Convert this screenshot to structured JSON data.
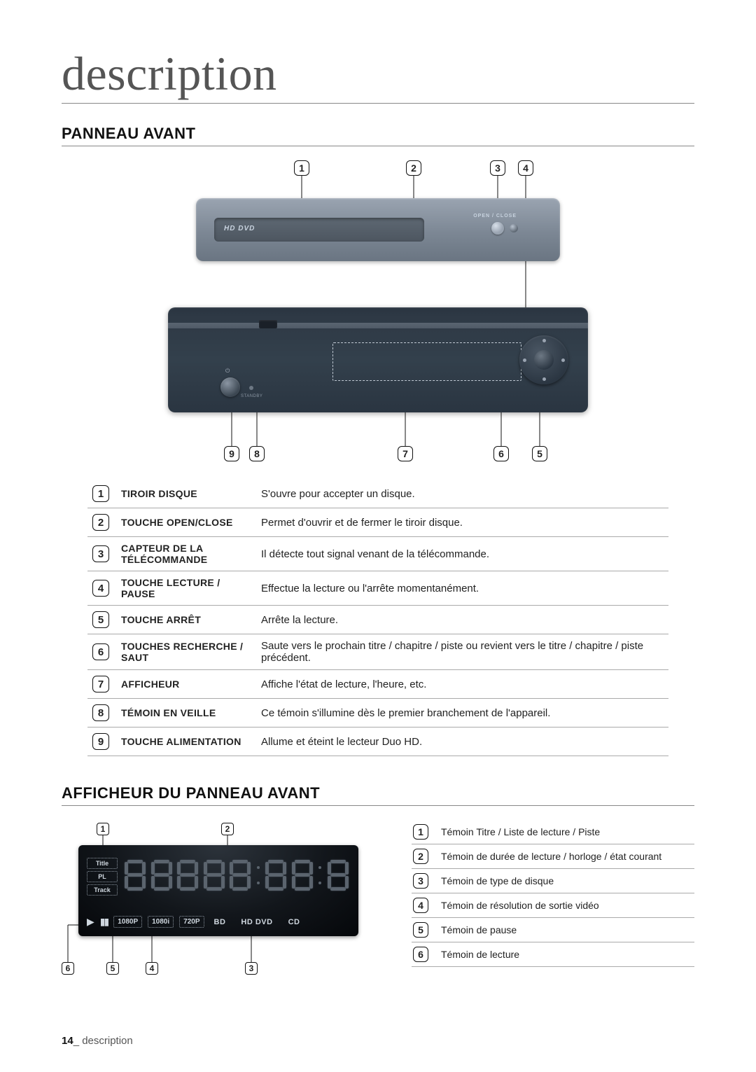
{
  "page_title": "description",
  "section1_title": "PANNEAU AVANT",
  "section2_title": "AFFICHEUR DU PANNEAU AVANT",
  "footer_page": "14",
  "footer_text": "_ description",
  "top_labels": [
    "1",
    "2",
    "3",
    "4"
  ],
  "bottom_labels": [
    "9",
    "8",
    "7",
    "6",
    "5"
  ],
  "device_top": {
    "tray_brand": "HD DVD",
    "open_close": "OPEN / CLOSE"
  },
  "device_bot": {
    "power_sym": "⏻",
    "standby": "STANDBY"
  },
  "parts": [
    {
      "n": "1",
      "label": "TIROIR DISQUE",
      "desc": "S'ouvre pour accepter un disque."
    },
    {
      "n": "2",
      "label": "TOUCHE OPEN/CLOSE",
      "desc": "Permet d'ouvrir et de fermer le tiroir disque."
    },
    {
      "n": "3",
      "label": "CAPTEUR DE LA TÉLÉCOMMANDE",
      "desc": "Il détecte tout signal venant de la télécommande."
    },
    {
      "n": "4",
      "label": "TOUCHE LECTURE / PAUSE",
      "desc": "Effectue la lecture ou l'arrête momentanément."
    },
    {
      "n": "5",
      "label": "TOUCHE ARRÊT",
      "desc": "Arrête la lecture."
    },
    {
      "n": "6",
      "label": "TOUCHES RECHERCHE / SAUT",
      "desc": "Saute vers le prochain titre / chapitre / piste ou revient vers le titre / chapitre / piste précédent."
    },
    {
      "n": "7",
      "label": "AFFICHEUR",
      "desc": "Affiche l'état de lecture, l'heure, etc."
    },
    {
      "n": "8",
      "label": "TÉMOIN EN VEILLE",
      "desc": "Ce témoin s'illumine dès le premier branchement de l'appareil."
    },
    {
      "n": "9",
      "label": "TOUCHE ALIMENTATION",
      "desc": "Allume et éteint le lecteur Duo HD."
    }
  ],
  "display_panel": {
    "side_labels": [
      "Title",
      "PL",
      "Track"
    ],
    "resolutions": [
      "1080P",
      "1080i",
      "720P"
    ],
    "formats": [
      "BD",
      "HD DVD",
      "CD"
    ]
  },
  "disp_top_labels": [
    "1",
    "2"
  ],
  "disp_bottom_labels": [
    "6",
    "5",
    "4",
    "3"
  ],
  "disp_legend": [
    {
      "n": "1",
      "desc": "Témoin Titre / Liste de lecture / Piste"
    },
    {
      "n": "2",
      "desc": "Témoin de durée de lecture / horloge / état courant"
    },
    {
      "n": "3",
      "desc": "Témoin de type de disque"
    },
    {
      "n": "4",
      "desc": "Témoin de résolution de sortie vidéo"
    },
    {
      "n": "5",
      "desc": "Témoin de pause"
    },
    {
      "n": "6",
      "desc": "Témoin de lecture"
    }
  ]
}
